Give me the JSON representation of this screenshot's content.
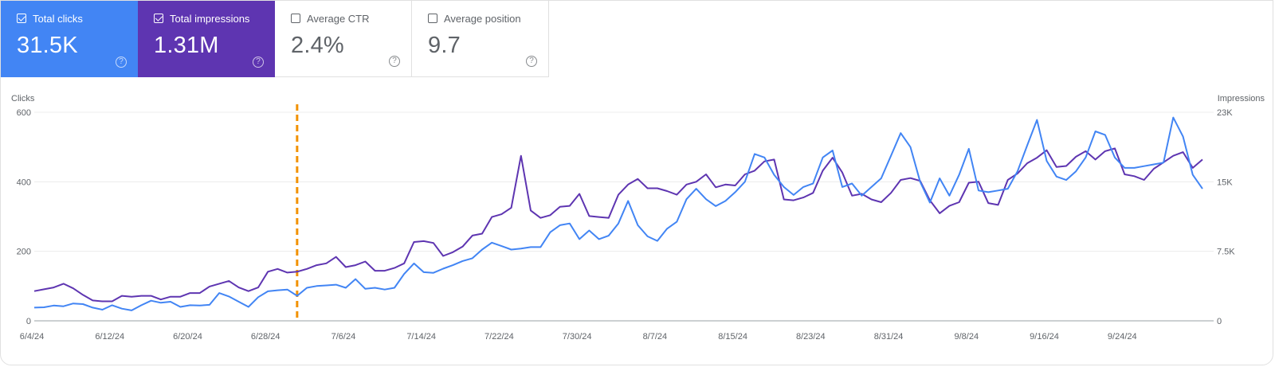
{
  "metrics": [
    {
      "id": "clicks",
      "label": "Total clicks",
      "value": "31.5K",
      "checked": true,
      "color": "#4285f4"
    },
    {
      "id": "impressions",
      "label": "Total impressions",
      "value": "1.31M",
      "checked": true,
      "color": "#5e35b1"
    },
    {
      "id": "ctr",
      "label": "Average CTR",
      "value": "2.4%",
      "checked": false,
      "color": "#ffffff"
    },
    {
      "id": "position",
      "label": "Average position",
      "value": "9.7",
      "checked": false,
      "color": "#ffffff"
    }
  ],
  "help_glyph": "?",
  "chart_data": {
    "type": "line",
    "xlabels": [
      "6/4/24",
      "6/12/24",
      "6/20/24",
      "6/28/24",
      "7/6/24",
      "7/14/24",
      "7/22/24",
      "7/30/24",
      "8/7/24",
      "8/15/24",
      "8/23/24",
      "8/31/24",
      "9/8/24",
      "9/16/24",
      "9/24/24"
    ],
    "left_axis": {
      "label": "Clicks",
      "ticks": [
        0,
        200,
        400,
        600
      ],
      "tick_labels": [
        "0",
        "200",
        "400",
        "600"
      ],
      "range": [
        0,
        600
      ]
    },
    "right_axis": {
      "label": "Impressions",
      "ticks": [
        0,
        7500,
        15000,
        22500
      ],
      "tick_labels": [
        "0",
        "7.5K",
        "15K",
        "23K"
      ],
      "range": [
        0,
        22500
      ]
    },
    "grid": true,
    "marker": {
      "date": "7/1/24",
      "color": "#f29100",
      "style": "dashed"
    },
    "series": [
      {
        "name": "Clicks",
        "axis": "left",
        "color": "#4285f4",
        "values": [
          38,
          39,
          44,
          42,
          50,
          48,
          38,
          32,
          45,
          35,
          30,
          45,
          58,
          52,
          55,
          40,
          45,
          44,
          46,
          80,
          70,
          55,
          40,
          68,
          85,
          88,
          90,
          72,
          95,
          100,
          102,
          104,
          95,
          120,
          92,
          95,
          90,
          95,
          135,
          165,
          140,
          138,
          150,
          160,
          172,
          180,
          205,
          225,
          215,
          205,
          208,
          212,
          212,
          255,
          275,
          280,
          235,
          260,
          235,
          245,
          280,
          345,
          275,
          243,
          230,
          265,
          285,
          350,
          380,
          350,
          330,
          345,
          370,
          400,
          480,
          470,
          420,
          385,
          362,
          385,
          395,
          470,
          490,
          385,
          395,
          360,
          385,
          410,
          475,
          540,
          500,
          400,
          340,
          410,
          360,
          420,
          495,
          375,
          370,
          375,
          380,
          430,
          505,
          578,
          460,
          415,
          405,
          430,
          470,
          545,
          535,
          470,
          440,
          440,
          445,
          450,
          455,
          585,
          530,
          420,
          380
        ]
      },
      {
        "name": "Impressions",
        "axis": "right",
        "color": "#5e35b1",
        "values": [
          3200,
          3400,
          3600,
          4000,
          3500,
          2800,
          2200,
          2100,
          2100,
          2700,
          2600,
          2700,
          2700,
          2300,
          2600,
          2600,
          3000,
          3000,
          3700,
          4000,
          4300,
          3600,
          3200,
          3600,
          5300,
          5600,
          5200,
          5300,
          5600,
          6000,
          6200,
          6900,
          5800,
          6000,
          6400,
          5400,
          5400,
          5700,
          6200,
          8500,
          8600,
          8400,
          7000,
          7400,
          8000,
          9200,
          9400,
          11200,
          11500,
          12200,
          17800,
          11900,
          11100,
          11400,
          12300,
          12400,
          13700,
          11300,
          11200,
          11100,
          13600,
          14700,
          15300,
          14300,
          14300,
          14000,
          13600,
          14700,
          15000,
          15800,
          14400,
          14700,
          14600,
          15800,
          16200,
          17200,
          17400,
          13100,
          13000,
          13300,
          13800,
          16200,
          17600,
          16000,
          13500,
          13700,
          13100,
          12800,
          13800,
          15200,
          15400,
          15100,
          13000,
          11600,
          12400,
          12800,
          14900,
          15000,
          12700,
          12500,
          15200,
          15900,
          17000,
          17600,
          18400,
          16600,
          16700,
          17700,
          18300,
          17400,
          18300,
          18600,
          15800,
          15600,
          15200,
          16400,
          17100,
          17800,
          18200,
          16500,
          17400
        ]
      }
    ]
  }
}
